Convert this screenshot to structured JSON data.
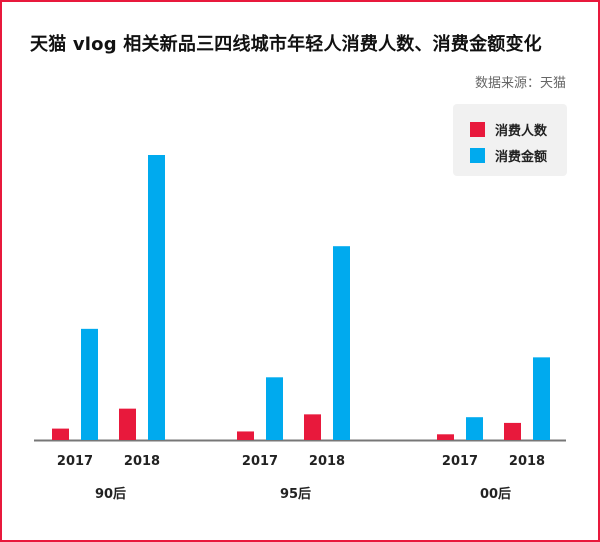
{
  "title": "天猫 vlog 相关新品三四线城市年轻人消费人数、消费金额变化",
  "source": "数据来源：天猫",
  "colors": {
    "frame": "#e8193c",
    "people": "#e8193c",
    "amount": "#00aaee",
    "axis": "#777777"
  },
  "chart_data": {
    "type": "bar",
    "groups": [
      "90后",
      "95后",
      "00后"
    ],
    "categories": [
      "2017",
      "2018"
    ],
    "series": [
      {
        "name": "消费人数",
        "values": [
          [
            4,
            11
          ],
          [
            3,
            9
          ],
          [
            2,
            6
          ]
        ]
      },
      {
        "name": "消费金额",
        "values": [
          [
            39,
            100
          ],
          [
            22,
            68
          ],
          [
            8,
            29
          ]
        ]
      }
    ],
    "ylim": [
      0,
      100
    ],
    "legend_position": "top-right",
    "grid": false,
    "xlabel": "",
    "ylabel": ""
  }
}
